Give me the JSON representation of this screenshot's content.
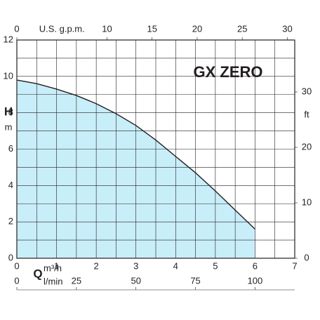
{
  "chart_data": {
    "type": "line",
    "title": "GX ZERO",
    "x_label": "Q",
    "x_unit": "m³/h",
    "y_label": "H",
    "y_unit": "m",
    "x2_unit": "U.S. g.p.m.",
    "x3_unit": "l/min",
    "y2_unit": "ft",
    "x": [
      0,
      0.5,
      1,
      1.5,
      2,
      2.5,
      3,
      3.5,
      4,
      4.5,
      5,
      5.5,
      6
    ],
    "values": [
      9.8,
      9.6,
      9.3,
      8.95,
      8.5,
      7.95,
      7.3,
      6.5,
      5.6,
      4.7,
      3.7,
      2.65,
      1.6
    ],
    "color": "#231f20",
    "fill": "#c8eef9",
    "xlim": [
      0,
      7
    ],
    "xticks": [
      0,
      1,
      2,
      3,
      4,
      5,
      6,
      7
    ],
    "xminor_ticks": [
      0.5,
      1.5,
      2.5,
      3.5,
      4.5,
      5.5,
      6.5
    ],
    "ylim": [
      0,
      12
    ],
    "yticks": [
      0,
      2,
      4,
      6,
      8,
      10,
      12
    ],
    "yminor_ticks": [
      1,
      3,
      5,
      7,
      9,
      11
    ],
    "x2lim": [
      0,
      30.82
    ],
    "x2ticks": [
      0,
      10,
      15,
      20,
      25,
      30
    ],
    "x3lim": [
      0,
      116.67
    ],
    "x3ticks": [
      0,
      25,
      50,
      75,
      100
    ],
    "y2lim": [
      0,
      39.37
    ],
    "y2ticks": [
      0,
      10,
      20,
      30
    ],
    "grid": true
  }
}
